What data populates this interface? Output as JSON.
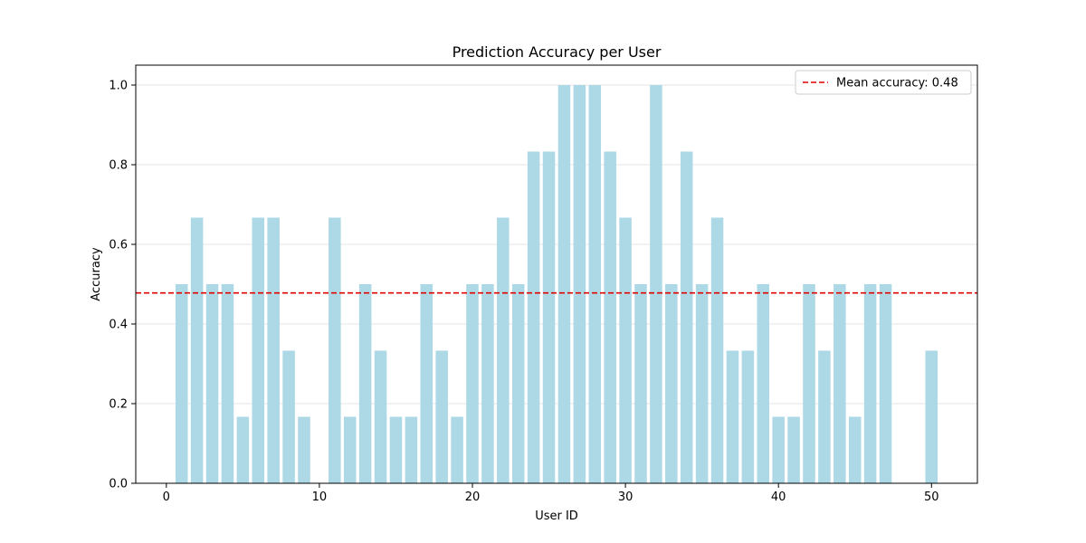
{
  "chart_data": {
    "type": "bar",
    "title": "Prediction Accuracy per User",
    "xlabel": "User ID",
    "ylabel": "Accuracy",
    "x": [
      1,
      2,
      3,
      4,
      5,
      6,
      7,
      8,
      9,
      10,
      11,
      12,
      13,
      14,
      15,
      16,
      17,
      18,
      19,
      20,
      21,
      22,
      23,
      24,
      25,
      26,
      27,
      28,
      29,
      30,
      31,
      32,
      33,
      34,
      35,
      36,
      37,
      38,
      39,
      40,
      41,
      42,
      43,
      44,
      45,
      46,
      47,
      48,
      49,
      50
    ],
    "values": [
      0.5,
      0.667,
      0.5,
      0.5,
      0.167,
      0.667,
      0.667,
      0.333,
      0.167,
      0,
      0.667,
      0.167,
      0.5,
      0.333,
      0.167,
      0.167,
      0.5,
      0.333,
      0.167,
      0.5,
      0.5,
      0.667,
      0.5,
      0.833,
      0.833,
      1.0,
      1.0,
      1.0,
      0.833,
      0.667,
      0.5,
      1.0,
      0.5,
      0.833,
      0.5,
      0.667,
      0.333,
      0.333,
      0.5,
      0.167,
      0.167,
      0.5,
      0.333,
      0.5,
      0.167,
      0.5,
      0.5,
      0,
      0,
      0.333
    ],
    "xlim": [
      -2,
      53
    ],
    "ylim": [
      0,
      1.05
    ],
    "xticks": [
      0,
      10,
      20,
      30,
      40,
      50
    ],
    "yticks": [
      0.0,
      0.2,
      0.4,
      0.6,
      0.8,
      1.0
    ],
    "xtick_labels": [
      "0",
      "10",
      "20",
      "30",
      "40",
      "50"
    ],
    "ytick_labels": [
      "0.0",
      "0.2",
      "0.4",
      "0.6",
      "0.8",
      "1.0"
    ],
    "grid": "horizontal",
    "bar_color": "#add8e6",
    "mean_line": {
      "value": 0.478,
      "label": "Mean accuracy: 0.48",
      "color": "#e00000",
      "style": "dashed"
    },
    "legend_placement": "top-right"
  }
}
